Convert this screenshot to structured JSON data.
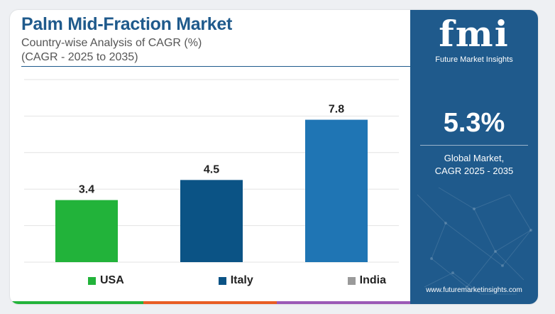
{
  "header": {
    "title": "Palm Mid-Fraction Market",
    "subtitle": "Country-wise Analysis of CAGR (%)",
    "subtitle2": "(CAGR - 2025 to 2035)"
  },
  "chart_data": {
    "type": "bar",
    "title": "Palm Mid-Fraction Market",
    "categories": [
      "USA",
      "Italy",
      "India"
    ],
    "values": [
      3.4,
      4.5,
      7.8
    ],
    "data_labels": [
      "3.4",
      "4.5",
      "7.8"
    ],
    "colors": [
      "#22b33a",
      "#0b5385",
      "#1f75b4"
    ],
    "ylim": [
      0,
      10
    ],
    "grid": true,
    "legend": "bottom",
    "xlabel": "",
    "ylabel": ""
  },
  "legend": {
    "items": [
      {
        "label": "USA",
        "color": "#22b33a"
      },
      {
        "label": "Italy",
        "color": "#0b5385"
      },
      {
        "label": "India",
        "color": "#9a9a9a"
      }
    ]
  },
  "sidebar": {
    "logo_text": "fmi",
    "logo_subtext": "Future Market Insights",
    "value": "5.3%",
    "label_line1": "Global Market,",
    "label_line2": "CAGR 2025 - 2035",
    "url": "www.futuremarketinsights.com"
  },
  "bottom_bar_colors": [
    "#22b33a",
    "#e85d24",
    "#9b59b6"
  ],
  "sidebar_bg": "#1f5a8c"
}
